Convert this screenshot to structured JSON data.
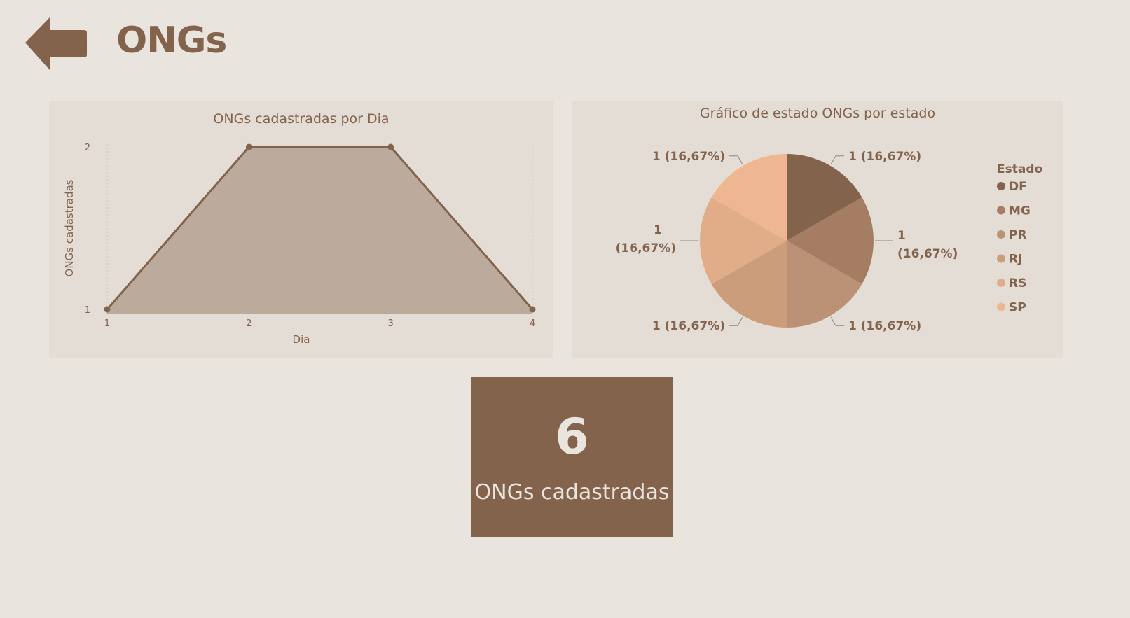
{
  "header": {
    "title": "ONGs",
    "back_icon": "arrow-left-icon"
  },
  "colors": {
    "accent": "#84634c",
    "background": "#e9e4de",
    "card": "#e3ddd6",
    "area_fill": "#bcab9c"
  },
  "chart_data": [
    {
      "type": "area",
      "title": "ONGs cadastradas por Dia",
      "xlabel": "Dia",
      "ylabel": "ONGs cadastradas",
      "x": [
        1,
        2,
        3,
        4
      ],
      "x_ticks": [
        "1",
        "2",
        "3",
        "4"
      ],
      "y_ticks": [
        "1",
        "2"
      ],
      "values": [
        1,
        2,
        2,
        1
      ],
      "ylim": [
        1,
        2
      ],
      "grid": "vertical-dotted"
    },
    {
      "type": "pie",
      "title": "Gráfico de estado ONGs por estado",
      "legend_title": "Estado",
      "legend_position": "right",
      "categories": [
        "DF",
        "MG",
        "PR",
        "RJ",
        "RS",
        "SP"
      ],
      "values": [
        1,
        1,
        1,
        1,
        1,
        1
      ],
      "labels": [
        "1 (16,67%)",
        "1 (16,67%)",
        "1 (16,67%)",
        "1 (16,67%)",
        "1 (16,67%)",
        "1 (16,67%)"
      ],
      "colors": [
        "#84634c",
        "#a47d62",
        "#bc9276",
        "#cb9d7b",
        "#e0ad88",
        "#efb791"
      ]
    }
  ],
  "kpi": {
    "value": "6",
    "label": "ONGs cadastradas"
  }
}
